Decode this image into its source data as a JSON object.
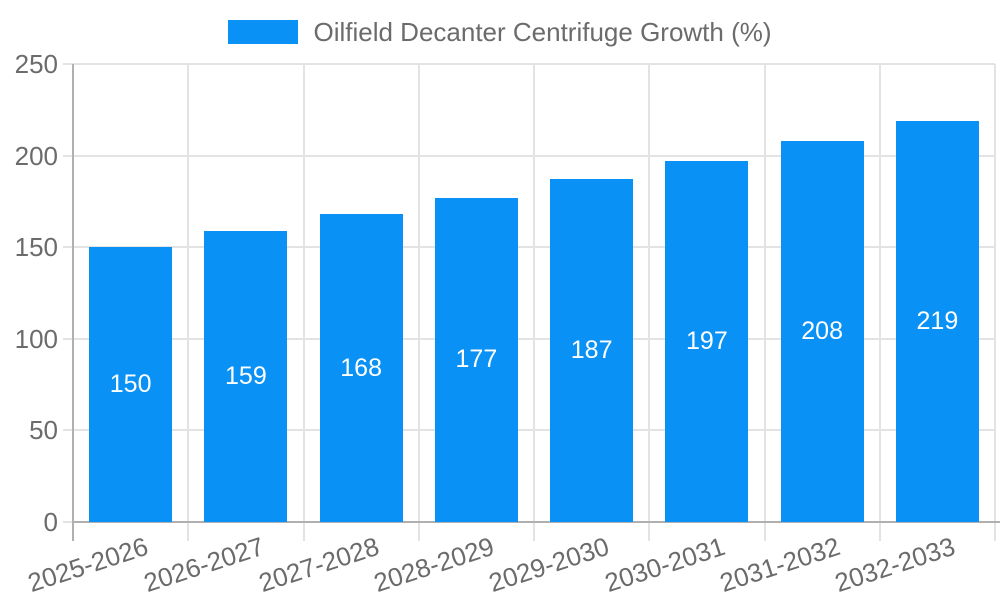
{
  "chart_data": {
    "type": "bar",
    "title": "Oilfield Decanter Centrifuge Growth (%)",
    "categories": [
      "2025-2026",
      "2026-2027",
      "2027-2028",
      "2028-2029",
      "2029-2030",
      "2030-2031",
      "2031-2032",
      "2032-2033"
    ],
    "series": [
      {
        "name": "Oilfield Decanter Centrifuge Growth (%)",
        "values": [
          150,
          159,
          168,
          177,
          187,
          197,
          208,
          219
        ]
      }
    ],
    "xlabel": "",
    "ylabel": "",
    "ylim": [
      0,
      250
    ],
    "yticks": [
      0,
      50,
      100,
      150,
      200,
      250
    ],
    "grid": true,
    "value_labels_shown": true,
    "legend": {
      "position": "top",
      "label": "Oilfield Decanter Centrifuge Growth (%)"
    },
    "colors": {
      "bar": "#0991f5",
      "value_label": "#ffffff",
      "grid": "#e3e3e3",
      "axis": "#b0b0b0",
      "tick_text": "#6b6b6b",
      "background": "#ffffff"
    }
  }
}
